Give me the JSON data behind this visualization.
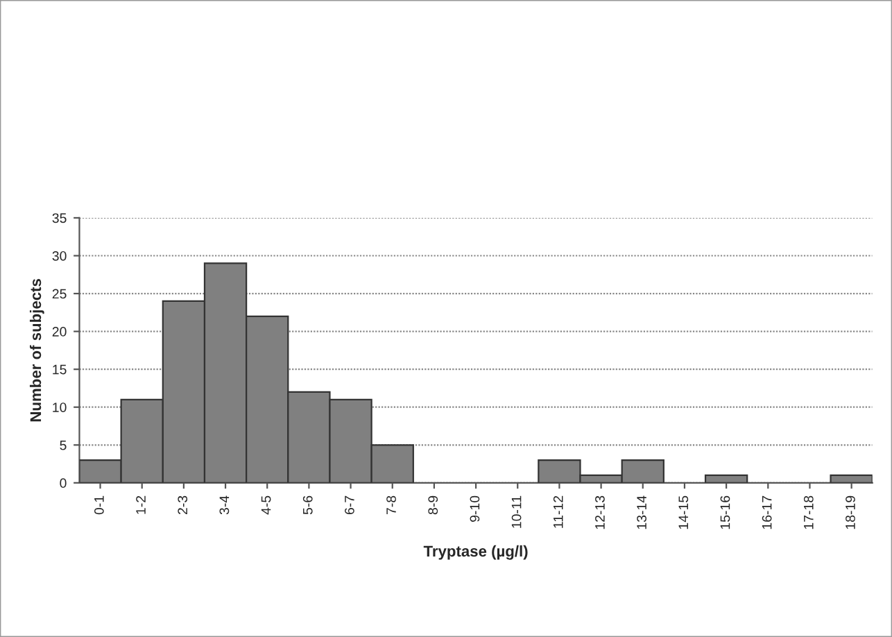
{
  "chart_data": {
    "type": "bar",
    "xlabel": "Tryptase (µg/l)",
    "ylabel": "Number of subjects",
    "categories": [
      "0-1",
      "1-2",
      "2-3",
      "3-4",
      "4-5",
      "5-6",
      "6-7",
      "7-8",
      "8-9",
      "9-10",
      "10-11",
      "11-12",
      "12-13",
      "13-14",
      "14-15",
      "15-16",
      "16-17",
      "17-18",
      "18-19"
    ],
    "values": [
      3,
      11,
      24,
      29,
      22,
      12,
      11,
      5,
      0,
      0,
      0,
      3,
      1,
      3,
      0,
      1,
      0,
      0,
      1
    ],
    "color": "#808080",
    "ylim": [
      0,
      35
    ],
    "yticks": [
      0,
      5,
      10,
      15,
      20,
      25,
      30,
      35
    ],
    "grid": "y"
  }
}
